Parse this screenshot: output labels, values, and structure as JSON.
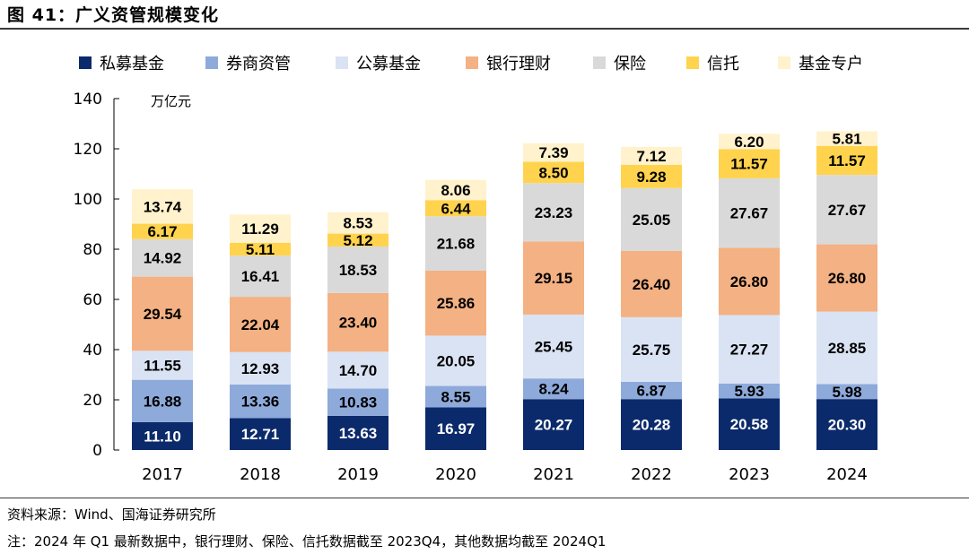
{
  "figure": {
    "title": "图 41：广义资管规模变化",
    "source": "资料来源：Wind、国海证券研究所",
    "note": "注：2024 年 Q1 最新数据中，银行理财、保险、信托数据截至 2023Q4，其他数据均截至 2024Q1"
  },
  "chart_data": {
    "type": "bar",
    "stacked": true,
    "unit": "万亿元",
    "categories": [
      "2017",
      "2018",
      "2019",
      "2020",
      "2021",
      "2022",
      "2023",
      "2024"
    ],
    "ylim": [
      0,
      140
    ],
    "yticks": [
      0,
      20,
      40,
      60,
      80,
      100,
      120,
      140
    ],
    "legend_position": "top",
    "series": [
      {
        "name": "私募基金",
        "color": "#0b2a6b",
        "values": [
          11.1,
          12.71,
          13.63,
          16.97,
          20.27,
          20.28,
          20.58,
          20.3
        ]
      },
      {
        "name": "券商资管",
        "color": "#8eaadb",
        "values": [
          16.88,
          13.36,
          10.83,
          8.55,
          8.24,
          6.87,
          5.93,
          5.98
        ]
      },
      {
        "name": "公募基金",
        "color": "#dae3f3",
        "values": [
          11.55,
          12.93,
          14.7,
          20.05,
          25.45,
          25.75,
          27.27,
          28.85
        ]
      },
      {
        "name": "银行理财",
        "color": "#f4b183",
        "values": [
          29.54,
          22.04,
          23.4,
          25.86,
          29.15,
          26.4,
          26.8,
          26.8
        ]
      },
      {
        "name": "保险",
        "color": "#d9d9d9",
        "values": [
          14.92,
          16.41,
          18.53,
          21.68,
          23.23,
          25.05,
          27.67,
          27.67
        ]
      },
      {
        "name": "信托",
        "color": "#ffd34d",
        "values": [
          6.17,
          5.11,
          5.12,
          6.44,
          8.5,
          9.28,
          11.57,
          11.57
        ]
      },
      {
        "name": "基金专户",
        "color": "#fff2cc",
        "values": [
          13.74,
          11.29,
          8.53,
          8.06,
          7.39,
          7.12,
          6.2,
          5.81
        ]
      }
    ]
  }
}
